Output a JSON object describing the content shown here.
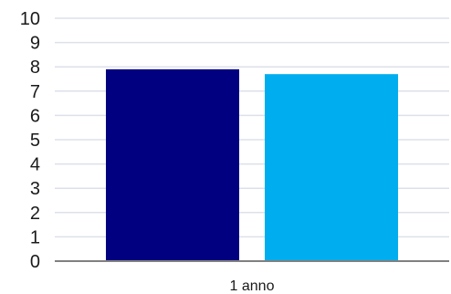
{
  "chart_data": {
    "type": "bar",
    "categories": [
      "1 anno"
    ],
    "series": [
      {
        "values": [
          7.9
        ],
        "color": "#000080"
      },
      {
        "values": [
          7.7
        ],
        "color": "#00AEEF"
      }
    ],
    "title": "",
    "xlabel": "",
    "ylabel": "",
    "ylim": [
      0,
      10
    ],
    "yticks": [
      "0",
      "1",
      "2",
      "3",
      "4",
      "5",
      "6",
      "7",
      "8",
      "9",
      "10"
    ],
    "grid": true,
    "legend": "none",
    "colors": {
      "grid": "#dde0ea",
      "axis": "#808080"
    }
  }
}
